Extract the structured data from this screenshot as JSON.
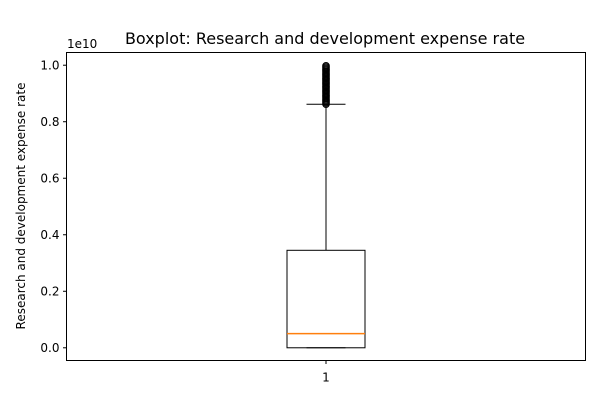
{
  "chart_data": {
    "type": "box",
    "title": "Boxplot:  Research and development expense rate",
    "xlabel": "",
    "ylabel": "Research and development expense rate",
    "y_offset_label": "1e10",
    "categories": [
      "1"
    ],
    "ylim": [
      -0.045,
      1.045
    ],
    "y_ticks": [
      0.0,
      0.2,
      0.4,
      0.6,
      0.8,
      1.0
    ],
    "y_tick_labels": [
      "0.0",
      "0.2",
      "0.4",
      "0.6",
      "0.8",
      "1.0"
    ],
    "grid": false,
    "boxes": [
      {
        "name": "1",
        "whisker_low": 0.0,
        "q1": 0.0,
        "median": 0.05,
        "q3": 0.345,
        "whisker_high": 0.862,
        "outliers": [
          0.862,
          0.866,
          0.87,
          0.874,
          0.878,
          0.882,
          0.886,
          0.89,
          0.894,
          0.898,
          0.902,
          0.906,
          0.91,
          0.914,
          0.918,
          0.922,
          0.926,
          0.93,
          0.934,
          0.938,
          0.942,
          0.946,
          0.95,
          0.954,
          0.958,
          0.962,
          0.966,
          0.97,
          0.974,
          0.978,
          0.982,
          0.986,
          0.99,
          0.994,
          0.998
        ]
      }
    ],
    "colors": {
      "box": "#000000",
      "median": "#ff7f0e",
      "whisker": "#000000",
      "flier": "#000000"
    }
  }
}
